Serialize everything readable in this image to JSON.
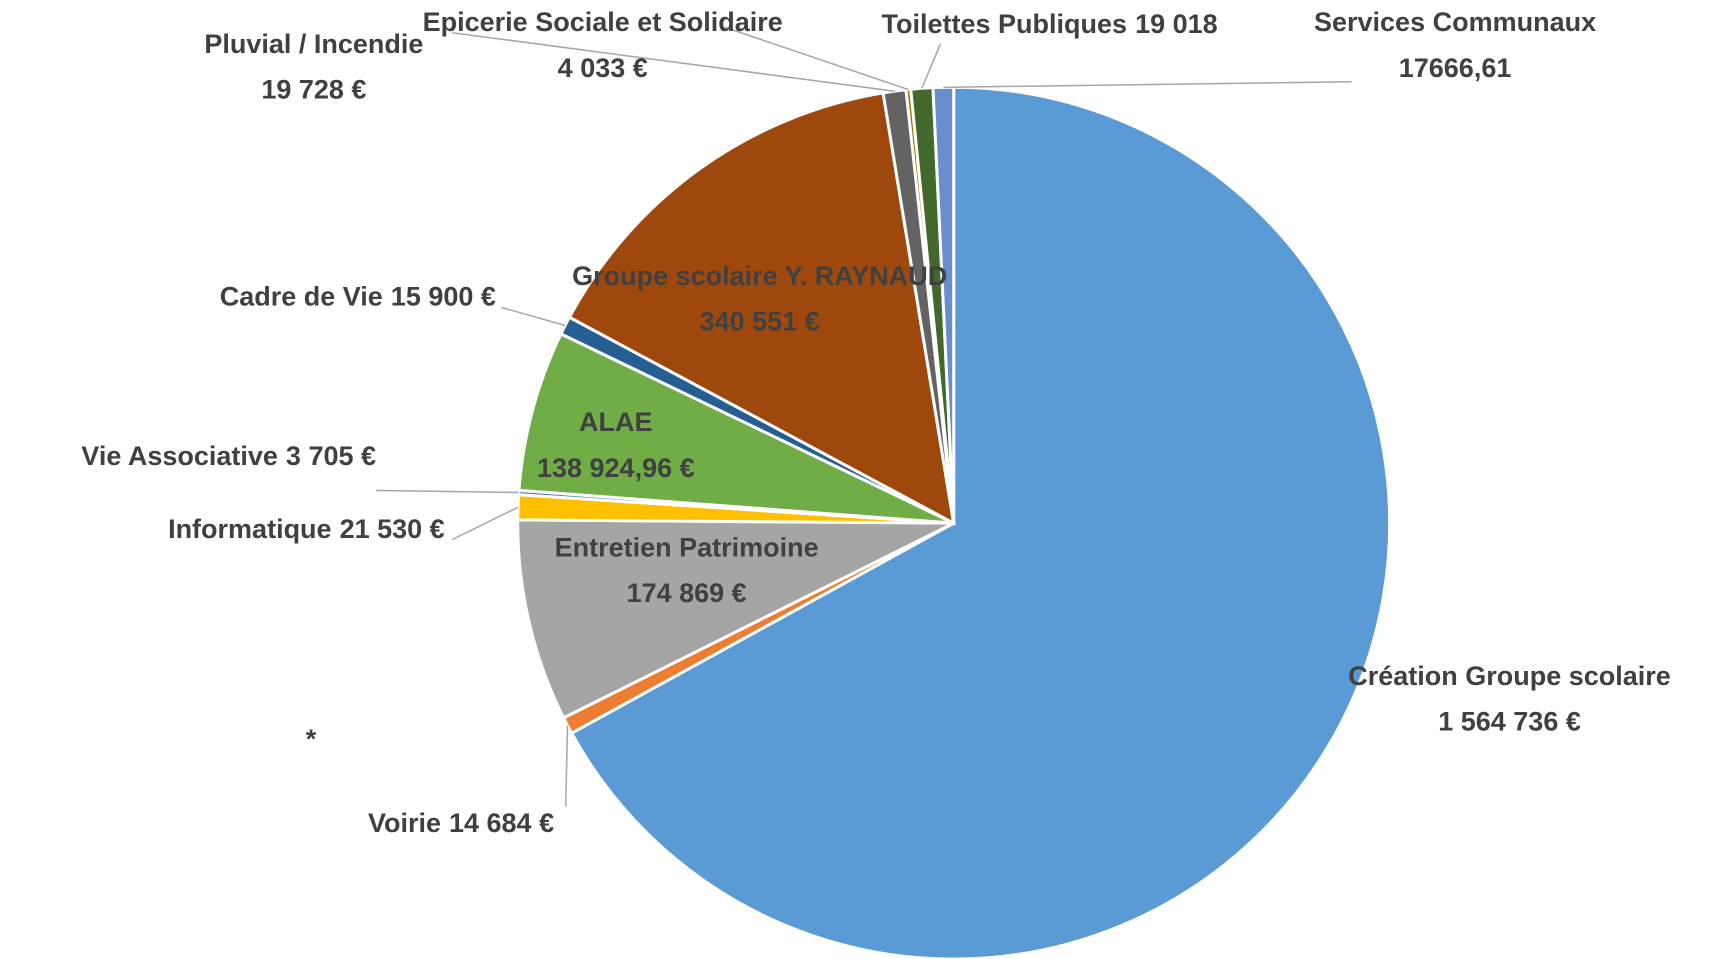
{
  "chart_data": {
    "type": "pie",
    "categories": [
      "Création Groupe scolaire",
      "Voirie",
      "Entretien Patrimoine",
      "Informatique",
      "Vie Associative",
      "ALAE",
      "Cadre de Vie",
      "Groupe scolaire Y. RAYNAUD",
      "Pluvial / Incendie",
      "Epicerie Sociale et Solidaire",
      "Toilettes Publiques",
      "Services Communaux"
    ],
    "values": [
      1564736,
      14684,
      174869,
      21530,
      3705,
      138924.96,
      15900,
      340551,
      19728,
      4033,
      19018,
      17666.61
    ],
    "value_labels": [
      "1 564 736 €",
      "14 684 €",
      "174 869 €",
      "21 530 €",
      "3 705 €",
      "138 924,96 €",
      "15 900 €",
      "340 551 €",
      "19 728 €",
      "4 033 €",
      "19 018",
      "17666,61"
    ],
    "colors": [
      "#5b9bd5",
      "#ed7d31",
      "#a5a5a5",
      "#ffc000",
      "#4472c4",
      "#70ad47",
      "#255e91",
      "#9e480e",
      "#636363",
      "#997300",
      "#43682b",
      "#698ed0"
    ],
    "annotation": "*"
  }
}
